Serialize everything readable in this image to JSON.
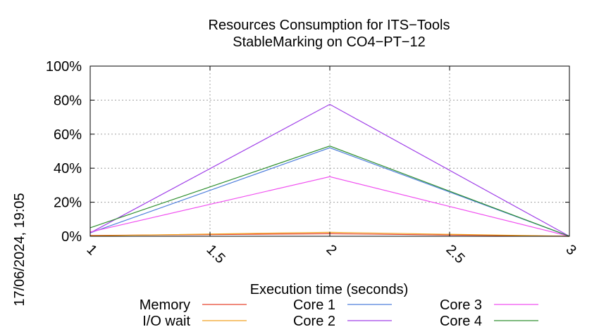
{
  "chart_data": {
    "type": "line",
    "title": "Resources Consumption for ITS−Tools",
    "subtitle": "StableMarking on CO4−PT−12",
    "xlabel": "Execution time (seconds)",
    "ylabel": "",
    "xlim": [
      1,
      3
    ],
    "ylim": [
      0,
      100
    ],
    "x_ticks": [
      "1",
      "1.5",
      "2",
      "2.5",
      "3"
    ],
    "y_ticks": [
      "0%",
      "20%",
      "40%",
      "60%",
      "80%",
      "100%"
    ],
    "grid": true,
    "legend_position": "bottom",
    "x": [
      1,
      2,
      3
    ],
    "series": [
      {
        "name": "Memory",
        "color": "#e8432e",
        "values": [
          0.5,
          1.5,
          0
        ]
      },
      {
        "name": "I/O wait",
        "color": "#f0a020",
        "values": [
          0.3,
          2.3,
          0
        ]
      },
      {
        "name": "Core 1",
        "color": "#4f7fdc",
        "values": [
          2,
          52,
          0
        ]
      },
      {
        "name": "Core 2",
        "color": "#a040e8",
        "values": [
          2,
          77.5,
          0
        ]
      },
      {
        "name": "Core 3",
        "color": "#f050f0",
        "values": [
          2.5,
          35,
          0
        ]
      },
      {
        "name": "Core 4",
        "color": "#309030",
        "values": [
          5,
          53,
          0
        ]
      }
    ]
  },
  "timestamp": "17/06/2024, 19:05"
}
